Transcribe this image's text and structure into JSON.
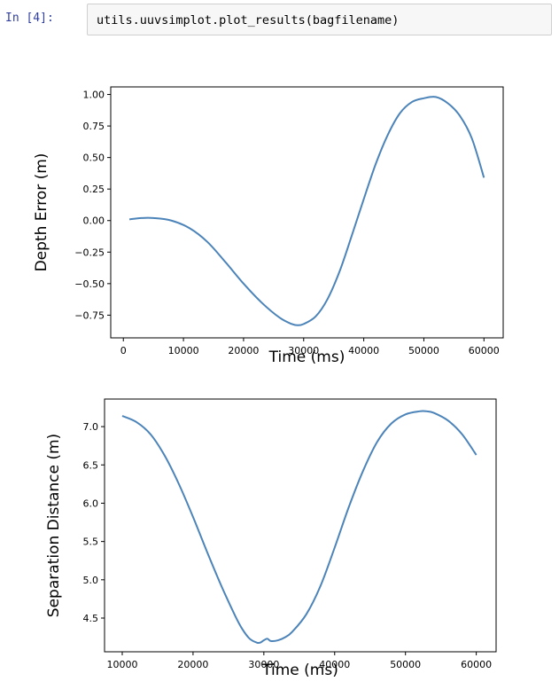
{
  "cell": {
    "prompt": "In [4]:",
    "code": "utils.uuvsimplot.plot_results(bagfilename)"
  },
  "colors": {
    "line": "#4c84b9",
    "axis": "#000000",
    "prompt": "#303f9f"
  },
  "chart_data": [
    {
      "type": "line",
      "title": "",
      "xlabel": "Time (ms)",
      "ylabel": "Depth Error (m)",
      "xlim": [
        -2100,
        63200
      ],
      "ylim": [
        -0.93,
        1.06
      ],
      "xticks": [
        0,
        10000,
        20000,
        30000,
        40000,
        50000,
        60000
      ],
      "yticks": [
        -0.75,
        -0.5,
        -0.25,
        0.0,
        0.25,
        0.5,
        0.75,
        1.0
      ],
      "ytick_labels": [
        "−0.75",
        "−0.50",
        "−0.25",
        "0.00",
        "0.25",
        "0.50",
        "0.75",
        "1.00"
      ],
      "x": [
        1000,
        3000,
        5000,
        8000,
        11000,
        14000,
        17000,
        20000,
        23000,
        26000,
        28000,
        29000,
        30000,
        32000,
        34000,
        36000,
        38000,
        40000,
        42000,
        44000,
        46000,
        48000,
        50000,
        52000,
        54000,
        56000,
        58000,
        60000
      ],
      "y": [
        0.01,
        0.02,
        0.02,
        0.0,
        -0.06,
        -0.17,
        -0.33,
        -0.5,
        -0.65,
        -0.77,
        -0.82,
        -0.83,
        -0.82,
        -0.76,
        -0.62,
        -0.4,
        -0.12,
        0.17,
        0.45,
        0.68,
        0.85,
        0.94,
        0.97,
        0.98,
        0.93,
        0.83,
        0.65,
        0.34
      ],
      "grid": false
    },
    {
      "type": "line",
      "title": "",
      "xlabel": "Time (ms)",
      "ylabel": "Separation Distance (m)",
      "xlim": [
        7500,
        62800
      ],
      "ylim": [
        4.06,
        7.36
      ],
      "xticks": [
        10000,
        20000,
        30000,
        40000,
        50000,
        60000
      ],
      "yticks": [
        4.5,
        5.0,
        5.5,
        6.0,
        6.5,
        7.0
      ],
      "ytick_labels": [
        "4.5",
        "5.0",
        "5.5",
        "6.0",
        "6.5",
        "7.0"
      ],
      "x": [
        10000,
        12000,
        14000,
        16000,
        18000,
        20000,
        22000,
        24000,
        26000,
        27000,
        28000,
        29000,
        29500,
        30000,
        30500,
        31000,
        32000,
        33000,
        34000,
        36000,
        38000,
        40000,
        42000,
        44000,
        46000,
        48000,
        50000,
        52000,
        53000,
        54000,
        56000,
        58000,
        60000
      ],
      "y": [
        7.14,
        7.06,
        6.9,
        6.62,
        6.25,
        5.82,
        5.36,
        4.92,
        4.52,
        4.35,
        4.23,
        4.18,
        4.18,
        4.21,
        4.23,
        4.2,
        4.21,
        4.25,
        4.32,
        4.55,
        4.92,
        5.42,
        5.95,
        6.42,
        6.8,
        7.04,
        7.16,
        7.2,
        7.2,
        7.18,
        7.08,
        6.9,
        6.63
      ],
      "grid": false
    }
  ]
}
